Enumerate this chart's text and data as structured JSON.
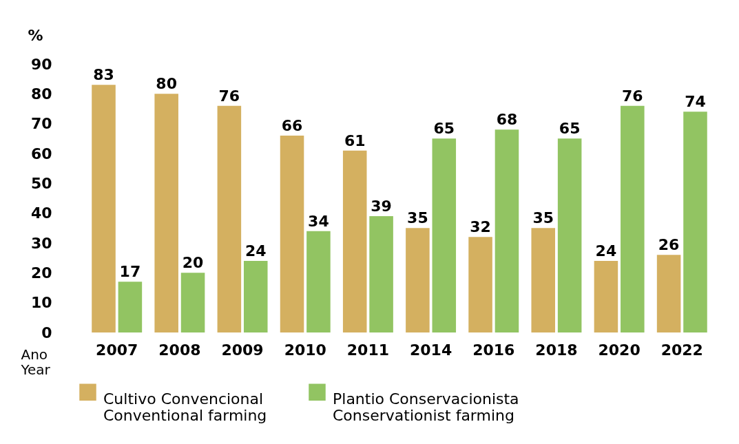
{
  "chart_data": {
    "type": "bar",
    "ylabel": "%",
    "xlabel": "Ano\nYear",
    "categories": [
      "2007",
      "2008",
      "2009",
      "2010",
      "2011",
      "2014",
      "2016",
      "2018",
      "2020",
      "2022"
    ],
    "series": [
      {
        "name": "Cultivo Convencional\nConventional farming",
        "color": "#d4b060",
        "values": [
          83,
          80,
          76,
          66,
          61,
          35,
          32,
          35,
          24,
          26
        ]
      },
      {
        "name": "Plantio Conservacionista\nConservationist farming",
        "color": "#92c462",
        "values": [
          17,
          20,
          24,
          34,
          39,
          65,
          68,
          65,
          76,
          74
        ]
      }
    ],
    "ylim": [
      0,
      90
    ],
    "yticks": [
      0,
      10,
      20,
      30,
      40,
      50,
      60,
      70,
      80,
      90
    ],
    "grid": false,
    "legend": "bottom",
    "data_labels": true
  }
}
